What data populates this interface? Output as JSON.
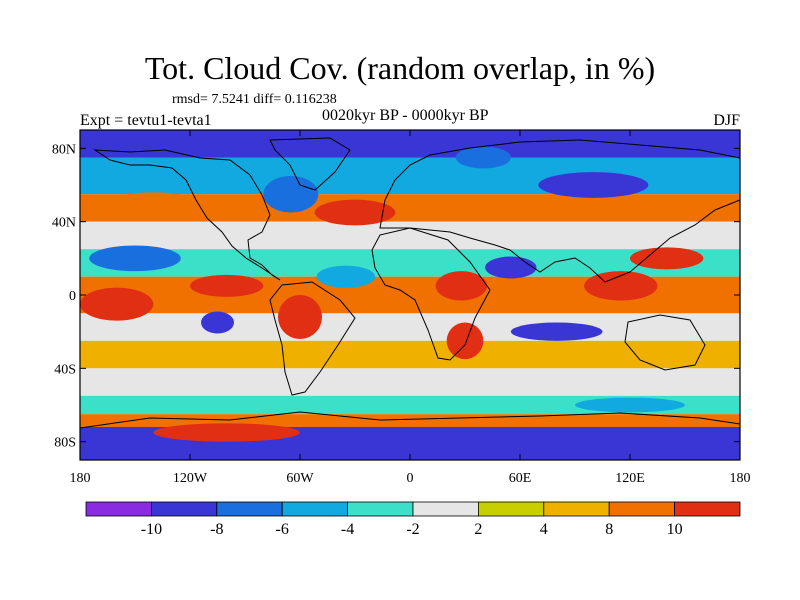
{
  "header": {
    "title": "Tot. Cloud Cov. (random overlap, in %)",
    "stats": "rmsd= 7.5241 diff= 0.116238",
    "experiment": "Expt = tevtu1-tevta1",
    "period": "0020kyr BP - 0000kyr BP",
    "season": "DJF"
  },
  "chart_data": {
    "type": "heatmap",
    "title": "Tot. Cloud Cov. (random overlap, in %)",
    "subtitle": "0020kyr BP - 0000kyr BP",
    "xlabel": "",
    "ylabel": "",
    "xlim": [
      -180,
      180
    ],
    "ylim": [
      -90,
      90
    ],
    "x_ticks": [
      {
        "value": -180,
        "label": "180"
      },
      {
        "value": -120,
        "label": "120W"
      },
      {
        "value": -60,
        "label": "60W"
      },
      {
        "value": 0,
        "label": "0"
      },
      {
        "value": 60,
        "label": "60E"
      },
      {
        "value": 120,
        "label": "120E"
      },
      {
        "value": 180,
        "label": "180"
      }
    ],
    "y_ticks": [
      {
        "value": 80,
        "label": "80N"
      },
      {
        "value": 40,
        "label": "40N"
      },
      {
        "value": 0,
        "label": "0"
      },
      {
        "value": -40,
        "label": "40S"
      },
      {
        "value": -80,
        "label": "80S"
      }
    ],
    "colorbar": {
      "levels": [
        -10,
        -8,
        -6,
        -4,
        -2,
        2,
        4,
        8,
        10
      ],
      "labels": [
        "-10",
        "-8",
        "-6",
        "-4",
        "-2",
        "2",
        "4",
        "8",
        "10"
      ],
      "colors": [
        "#8a2be2",
        "#3a36d6",
        "#1a6fdf",
        "#12a8e0",
        "#3ce0c8",
        "#e6e6e6",
        "#c8cf00",
        "#f0b000",
        "#f07000",
        "#e02f12"
      ]
    },
    "zonal_bands": [
      {
        "lat_min": 75,
        "lat_max": 90,
        "value": -10
      },
      {
        "lat_min": 55,
        "lat_max": 75,
        "value": -6
      },
      {
        "lat_min": 40,
        "lat_max": 55,
        "value": 8
      },
      {
        "lat_min": 25,
        "lat_max": 40,
        "value": 0
      },
      {
        "lat_min": 10,
        "lat_max": 25,
        "value": -4
      },
      {
        "lat_min": -10,
        "lat_max": 10,
        "value": 8
      },
      {
        "lat_min": -25,
        "lat_max": -10,
        "value": 0
      },
      {
        "lat_min": -40,
        "lat_max": -25,
        "value": 4
      },
      {
        "lat_min": -55,
        "lat_max": -40,
        "value": 0
      },
      {
        "lat_min": -65,
        "lat_max": -55,
        "value": -4
      },
      {
        "lat_min": -72,
        "lat_max": -65,
        "value": 8
      },
      {
        "lat_min": -90,
        "lat_max": -72,
        "value": -10
      }
    ],
    "anomalies": [
      {
        "lon": -150,
        "lat": 20,
        "rx": 25,
        "ry": 7,
        "value": -8
      },
      {
        "lon": -140,
        "lat": 50,
        "rx": 25,
        "ry": 6,
        "value": 8
      },
      {
        "lon": -100,
        "lat": 5,
        "rx": 20,
        "ry": 6,
        "value": 10
      },
      {
        "lon": -160,
        "lat": -5,
        "rx": 20,
        "ry": 9,
        "value": 10
      },
      {
        "lon": -65,
        "lat": 55,
        "rx": 15,
        "ry": 10,
        "value": -8
      },
      {
        "lon": -30,
        "lat": 45,
        "rx": 22,
        "ry": 7,
        "value": 10
      },
      {
        "lon": -35,
        "lat": 10,
        "rx": 16,
        "ry": 6,
        "value": -6
      },
      {
        "lon": -60,
        "lat": -12,
        "rx": 12,
        "ry": 12,
        "value": 10
      },
      {
        "lon": -105,
        "lat": -15,
        "rx": 9,
        "ry": 6,
        "value": -10
      },
      {
        "lon": 28,
        "lat": 5,
        "rx": 14,
        "ry": 8,
        "value": 10
      },
      {
        "lon": 55,
        "lat": 15,
        "rx": 14,
        "ry": 6,
        "value": -10
      },
      {
        "lon": 80,
        "lat": -20,
        "rx": 25,
        "ry": 5,
        "value": -10
      },
      {
        "lon": 115,
        "lat": 5,
        "rx": 20,
        "ry": 8,
        "value": 10
      },
      {
        "lon": 140,
        "lat": 20,
        "rx": 20,
        "ry": 6,
        "value": 10
      },
      {
        "lon": 30,
        "lat": -25,
        "rx": 10,
        "ry": 10,
        "value": 10
      },
      {
        "lon": 100,
        "lat": 60,
        "rx": 30,
        "ry": 7,
        "value": -10
      },
      {
        "lon": 120,
        "lat": -60,
        "rx": 30,
        "ry": 4,
        "value": -6
      },
      {
        "lon": -100,
        "lat": -75,
        "rx": 40,
        "ry": 5,
        "value": 10
      },
      {
        "lon": 40,
        "lat": 75,
        "rx": 15,
        "ry": 6,
        "value": -8
      }
    ]
  }
}
